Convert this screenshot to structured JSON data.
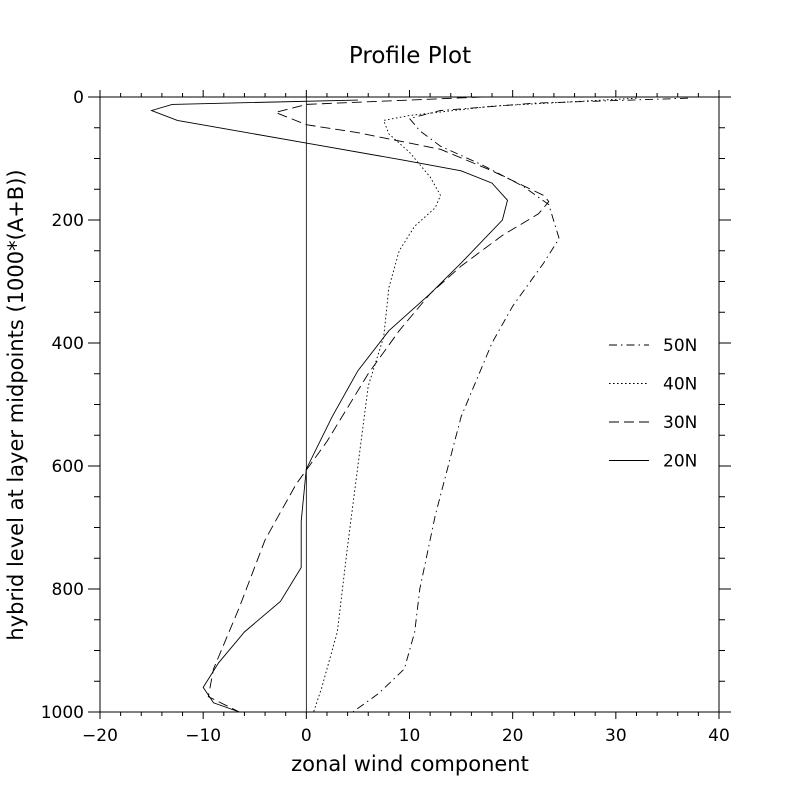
{
  "chart_data": {
    "type": "line",
    "title": "Profile Plot",
    "xlabel": "zonal wind component",
    "ylabel": "hybrid level at layer midpoints (1000*(A+B))",
    "xlim": [
      -20,
      40
    ],
    "ylim": [
      1000,
      0
    ],
    "y_inverted": true,
    "grid": false,
    "legend_position": "right",
    "x_ticks": [
      -20,
      -10,
      0,
      10,
      20,
      30,
      40
    ],
    "y_ticks": [
      0,
      200,
      400,
      600,
      800,
      1000
    ],
    "x_tick_labels": [
      "−20",
      "−10",
      "0",
      "10",
      "20",
      "30",
      "40"
    ],
    "y_tick_labels": [
      "0",
      "200",
      "400",
      "600",
      "800",
      "1000"
    ],
    "zero_reference_line": 0,
    "series": [
      {
        "name": "50N",
        "style": "dashdot",
        "points": [
          [
            37,
            2
          ],
          [
            22,
            10
          ],
          [
            13,
            22
          ],
          [
            10,
            35
          ],
          [
            11,
            55
          ],
          [
            13,
            80
          ],
          [
            17,
            110
          ],
          [
            21,
            145
          ],
          [
            23.5,
            175
          ],
          [
            24.5,
            230
          ],
          [
            23,
            270
          ],
          [
            20,
            340
          ],
          [
            18,
            400
          ],
          [
            15,
            520
          ],
          [
            12.5,
            680
          ],
          [
            11,
            800
          ],
          [
            10.5,
            870
          ],
          [
            9.5,
            930
          ],
          [
            7,
            970
          ],
          [
            4.5,
            1000
          ]
        ]
      },
      {
        "name": "40N",
        "style": "dotted",
        "points": [
          [
            32,
            2
          ],
          [
            18,
            15
          ],
          [
            10,
            30
          ],
          [
            7.5,
            38
          ],
          [
            8,
            60
          ],
          [
            10,
            90
          ],
          [
            12,
            130
          ],
          [
            13,
            160
          ],
          [
            12.5,
            180
          ],
          [
            10.5,
            210
          ],
          [
            9,
            250
          ],
          [
            8,
            310
          ],
          [
            7.5,
            390
          ],
          [
            6,
            470
          ],
          [
            5,
            600
          ],
          [
            4,
            730
          ],
          [
            3,
            870
          ],
          [
            1.5,
            960
          ],
          [
            0.7,
            1000
          ]
        ]
      },
      {
        "name": "30N",
        "style": "dashed",
        "points": [
          [
            17,
            0
          ],
          [
            0,
            12
          ],
          [
            -3,
            25
          ],
          [
            0,
            45
          ],
          [
            5,
            58
          ],
          [
            13,
            85
          ],
          [
            18,
            120
          ],
          [
            23,
            160
          ],
          [
            23.5,
            170
          ],
          [
            22.5,
            190
          ],
          [
            19,
            225
          ],
          [
            15,
            275
          ],
          [
            12,
            320
          ],
          [
            9,
            380
          ],
          [
            6,
            450
          ],
          [
            2,
            560
          ],
          [
            -1,
            630
          ],
          [
            -4,
            720
          ],
          [
            -6.5,
            830
          ],
          [
            -9,
            930
          ],
          [
            -9.5,
            975
          ],
          [
            -6.5,
            1000
          ]
        ]
      },
      {
        "name": "20N",
        "style": "solid",
        "points": [
          [
            5,
            5
          ],
          [
            -13,
            12
          ],
          [
            -15,
            22
          ],
          [
            -12.5,
            38
          ],
          [
            0,
            75
          ],
          [
            9.5,
            103
          ],
          [
            15,
            120
          ],
          [
            18,
            140
          ],
          [
            19.5,
            168
          ],
          [
            19,
            200
          ],
          [
            15,
            270
          ],
          [
            12,
            320
          ],
          [
            8,
            380
          ],
          [
            5,
            445
          ],
          [
            2.5,
            520
          ],
          [
            0,
            605
          ],
          [
            -0.5,
            690
          ],
          [
            -0.5,
            765
          ],
          [
            -2.5,
            820
          ],
          [
            -6,
            870
          ],
          [
            -8.5,
            920
          ],
          [
            -10,
            960
          ],
          [
            -9,
            985
          ],
          [
            -6.5,
            1000
          ]
        ]
      }
    ]
  }
}
